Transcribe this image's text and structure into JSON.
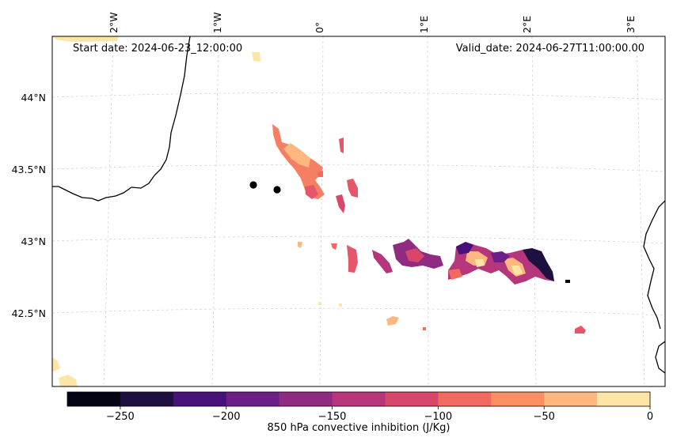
{
  "map": {
    "start_date": "Start date: 2024-06-23_12:00:00",
    "valid_date": "Valid_date: 2024-06-27T11:00:00.00",
    "lon_labels": [
      "2°W",
      "1°W",
      "0°",
      "1°E",
      "2°E",
      "3°E"
    ],
    "lat_labels": [
      "44°N",
      "43.5°N",
      "43°N",
      "42.5°N"
    ],
    "points_count": 2
  },
  "colorbar": {
    "label": "850 hPa convective inhibition (J/Kg)",
    "ticks": [
      "−250",
      "−200",
      "−150",
      "−100",
      "−50",
      "0"
    ],
    "tick_values": [
      -250,
      -200,
      -150,
      -100,
      -50,
      0
    ],
    "min": -275,
    "max": 0,
    "colors": [
      "#050416",
      "#1e1140",
      "#47117a",
      "#6c1f86",
      "#902b82",
      "#b5367a",
      "#d9466b",
      "#f16a5f",
      "#fb8f63",
      "#feb77e",
      "#fde5a6"
    ]
  },
  "chart_data": {
    "type": "heatmap",
    "title": "",
    "variable": "850 hPa convective inhibition",
    "units": "J/Kg",
    "range": [
      -275,
      0
    ],
    "levels": [
      -275,
      -250,
      -225,
      -200,
      -175,
      -150,
      -125,
      -100,
      -75,
      -50,
      -25,
      0
    ],
    "lon_ticks": [
      -2,
      -1,
      0,
      1,
      2,
      3
    ],
    "lat_ticks": [
      44,
      43.5,
      43,
      42.5
    ]
  }
}
